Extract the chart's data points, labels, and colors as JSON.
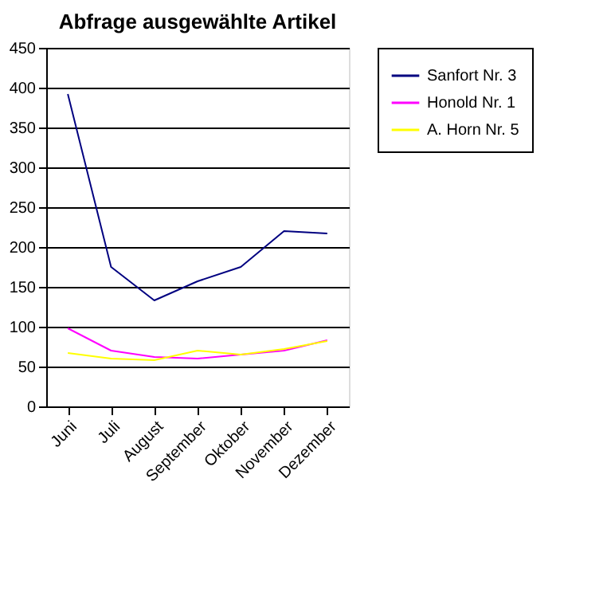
{
  "chart_data": {
    "type": "line",
    "title": "Abfrage ausgewählte Artikel",
    "categories": [
      "Juni",
      "Juli",
      "August",
      "September",
      "Oktober",
      "November",
      "Dezember"
    ],
    "series": [
      {
        "name": "Sanfort Nr. 3",
        "color": "#000080",
        "values": [
          392,
          175,
          133,
          157,
          175,
          220,
          217
        ]
      },
      {
        "name": "Honold Nr. 1",
        "color": "#ff00ff",
        "values": [
          98,
          70,
          62,
          60,
          65,
          70,
          83
        ]
      },
      {
        "name": "A. Horn Nr. 5",
        "color": "#ffff00",
        "values": [
          67,
          60,
          58,
          70,
          65,
          72,
          82
        ]
      }
    ],
    "ylim": [
      0,
      450
    ],
    "yticks": [
      0,
      50,
      100,
      150,
      200,
      250,
      300,
      350,
      400,
      450
    ],
    "grid": "y",
    "legend": "right",
    "marker": "none",
    "line_style": "solid"
  }
}
